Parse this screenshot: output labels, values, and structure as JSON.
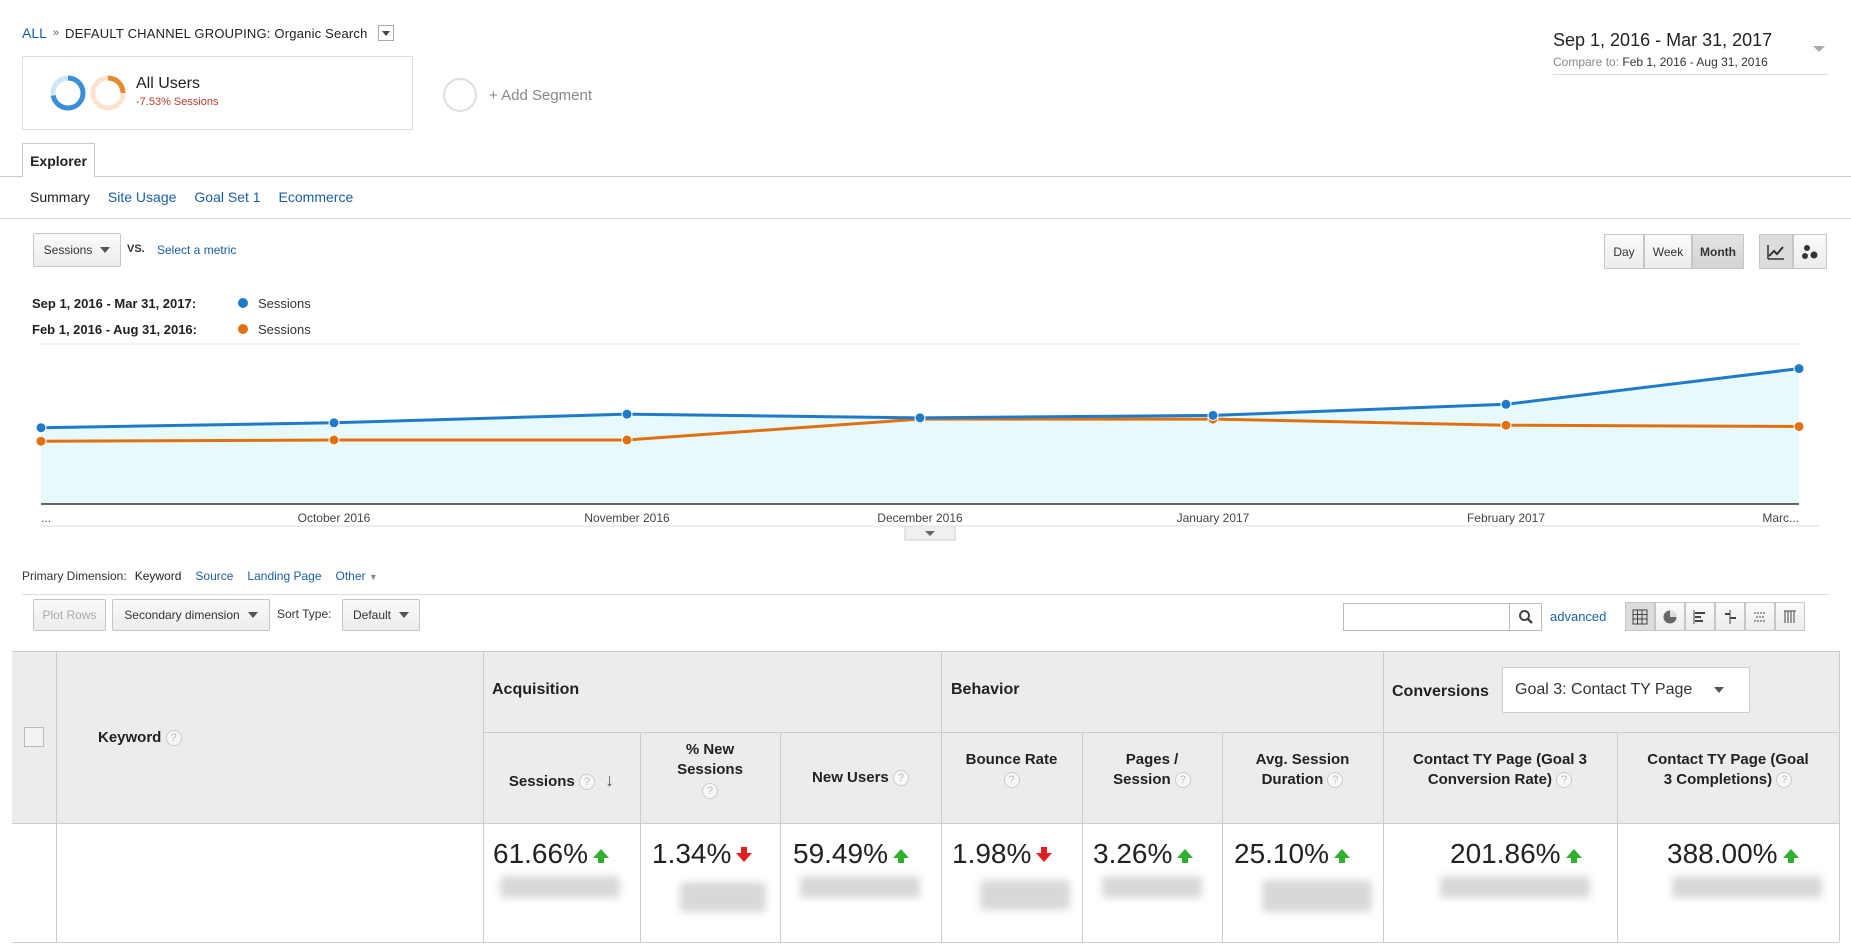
{
  "breadcrumb": {
    "all": "ALL",
    "separator": "»",
    "dimension": "DEFAULT CHANNEL GROUPING: Organic Search"
  },
  "segment": {
    "name": "All Users",
    "change": "-7.53% Sessions",
    "add_label": "+ Add Segment"
  },
  "date_range": {
    "main": "Sep 1, 2016 - Mar 31, 2017",
    "compare_label": "Compare to:",
    "compare_range": "Feb 1, 2016 - Aug 31, 2016"
  },
  "tabs": {
    "explorer": "Explorer",
    "subtabs": [
      "Summary",
      "Site Usage",
      "Goal Set 1",
      "Ecommerce"
    ]
  },
  "chart_controls": {
    "metric": "Sessions",
    "vs": "VS.",
    "select_metric": "Select a metric",
    "granularity": [
      "Day",
      "Week",
      "Month"
    ],
    "active_granularity": "Month"
  },
  "legend": [
    {
      "range": "Sep 1, 2016 - Mar 31, 2017:",
      "series": "Sessions",
      "color": "#1f7bc8"
    },
    {
      "range": "Feb 1, 2016 - Aug 31, 2016:",
      "series": "Sessions",
      "color": "#e07012"
    }
  ],
  "chart_data": {
    "type": "line",
    "x": [
      "...",
      "October 2016",
      "November 2016",
      "December 2016",
      "January 2017",
      "February 2017",
      "Marc..."
    ],
    "series": [
      {
        "name": "Sessions",
        "values": [
          62,
          66,
          73,
          70,
          72,
          81,
          110
        ],
        "color": "#1f7bc8",
        "fill": "#e6fafb"
      },
      {
        "name": "Sessions",
        "values": [
          51,
          52,
          52,
          69,
          69,
          64,
          63
        ],
        "color": "#e07012"
      }
    ],
    "ylim": [
      0,
      130
    ],
    "grid": true
  },
  "dimensions": {
    "label": "Primary Dimension:",
    "items": [
      "Keyword",
      "Source",
      "Landing Page",
      "Other"
    ],
    "active": "Keyword"
  },
  "table_controls": {
    "plot_rows": "Plot Rows",
    "secondary": "Secondary dimension",
    "sort_type_label": "Sort Type:",
    "sort_type": "Default",
    "advanced": "advanced"
  },
  "table": {
    "keyword_header": "Keyword",
    "groups": {
      "acquisition": "Acquisition",
      "behavior": "Behavior",
      "conversions": "Conversions"
    },
    "goal_select": "Goal 3: Contact TY Page",
    "columns": [
      {
        "l1": "Sessions",
        "l2": ""
      },
      {
        "l1": "% New",
        "l2": "Sessions"
      },
      {
        "l1": "New Users",
        "l2": ""
      },
      {
        "l1": "Bounce Rate",
        "l2": ""
      },
      {
        "l1": "Pages /",
        "l2": "Session"
      },
      {
        "l1": "Avg. Session",
        "l2": "Duration"
      },
      {
        "l1": "Contact TY Page (Goal 3",
        "l2": "Conversion Rate)"
      },
      {
        "l1": "Contact TY Page (Goal",
        "l2": "3 Completions)"
      }
    ],
    "totals": [
      {
        "value": "61.66%",
        "dir": "up"
      },
      {
        "value": "1.34%",
        "dir": "down"
      },
      {
        "value": "59.49%",
        "dir": "up"
      },
      {
        "value": "1.98%",
        "dir": "down"
      },
      {
        "value": "3.26%",
        "dir": "up"
      },
      {
        "value": "25.10%",
        "dir": "up"
      },
      {
        "value": "201.86%",
        "dir": "up"
      },
      {
        "value": "388.00%",
        "dir": "up"
      }
    ],
    "help_glyph": "?"
  }
}
